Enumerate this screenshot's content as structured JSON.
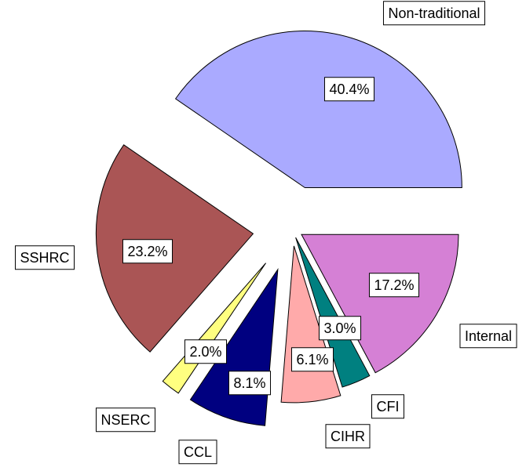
{
  "chart_data": {
    "type": "pie",
    "categories": [
      "Internal",
      "CFI",
      "CIHR",
      "CCL",
      "NSERC",
      "SSHRC",
      "Non-traditional"
    ],
    "values": [
      17.2,
      3.0,
      6.1,
      8.1,
      2.0,
      23.2,
      40.4
    ],
    "value_labels": [
      "17.2%",
      "3.0%",
      "6.1%",
      "8.1%",
      "2.0%",
      "23.2%",
      "40.4%"
    ],
    "colors": [
      "#d580d5",
      "#008080",
      "#ffaaaa",
      "#000080",
      "#ffff80",
      "#aa5555",
      "#aaaaff"
    ]
  }
}
